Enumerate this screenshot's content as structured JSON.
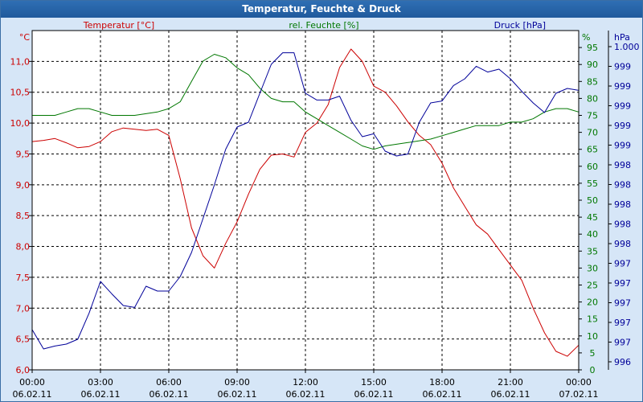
{
  "window": {
    "title": "Temperatur, Feuchte & Druck"
  },
  "colors": {
    "temperature": "#cc0000",
    "humidity": "#007700",
    "pressure": "#000099",
    "grid": "#000000",
    "plot_bg": "#ffffff",
    "frame_bg": "#d6e6f7"
  },
  "chart_data": {
    "type": "line",
    "title": "Temperatur, Feuchte & Druck",
    "x_ticks": [
      {
        "time": "00:00",
        "date": "06.02.11"
      },
      {
        "time": "03:00",
        "date": "06.02.11"
      },
      {
        "time": "06:00",
        "date": "06.02.11"
      },
      {
        "time": "09:00",
        "date": "06.02.11"
      },
      {
        "time": "12:00",
        "date": "06.02.11"
      },
      {
        "time": "15:00",
        "date": "06.02.11"
      },
      {
        "time": "18:00",
        "date": "06.02.11"
      },
      {
        "time": "21:00",
        "date": "06.02.11"
      },
      {
        "time": "00:00",
        "date": "07.02.11"
      }
    ],
    "xlim_hours": [
      0,
      24
    ],
    "axes": {
      "temperature": {
        "label": "Temperatur [°C]",
        "unit": "°C",
        "ylim": [
          6.0,
          11.5
        ],
        "ticks": [
          "6,0",
          "6,5",
          "7,0",
          "7,5",
          "8,0",
          "8,5",
          "9,0",
          "9,5",
          "10,0",
          "10,5",
          "11,0"
        ]
      },
      "humidity": {
        "label": "rel. Feuchte [%]",
        "unit": "%",
        "ylim": [
          0,
          100
        ],
        "ticks": [
          "0",
          "5",
          "10",
          "15",
          "20",
          "25",
          "30",
          "35",
          "40",
          "45",
          "50",
          "55",
          "60",
          "65",
          "70",
          "75",
          "80",
          "85",
          "90",
          "95"
        ]
      },
      "pressure": {
        "label": "Druck [hPa]",
        "unit": "hPa",
        "ticks": [
          "996",
          "997",
          "997",
          "997",
          "997",
          "997",
          "998",
          "998",
          "998",
          "998",
          "998",
          "999",
          "999",
          "999",
          "999",
          "999",
          "1.000"
        ]
      }
    },
    "series": [
      {
        "name": "Temperatur",
        "axis": "temperature",
        "x": [
          0,
          0.5,
          1,
          1.5,
          2,
          2.5,
          3,
          3.5,
          4,
          4.5,
          5,
          5.5,
          6,
          6.5,
          7,
          7.5,
          8,
          8.5,
          9,
          9.5,
          10,
          10.5,
          11,
          11.5,
          12,
          12.5,
          13,
          13.5,
          14,
          14.5,
          15,
          15.5,
          16,
          16.5,
          17,
          17.5,
          18,
          18.5,
          19,
          19.5,
          20,
          20.5,
          21,
          21.5,
          22,
          22.5,
          23,
          23.5,
          24
        ],
        "values": [
          9.7,
          9.72,
          9.75,
          9.68,
          9.6,
          9.62,
          9.7,
          9.86,
          9.92,
          9.9,
          9.88,
          9.9,
          9.8,
          9.1,
          8.3,
          7.85,
          7.65,
          8.05,
          8.4,
          8.85,
          9.25,
          9.48,
          9.5,
          9.45,
          9.85,
          10.0,
          10.3,
          10.9,
          11.2,
          11.0,
          10.6,
          10.5,
          10.28,
          10.02,
          9.8,
          9.65,
          9.35,
          8.95,
          8.65,
          8.35,
          8.2,
          7.95,
          7.7,
          7.45,
          7.0,
          6.6,
          6.3,
          6.22,
          6.4
        ]
      },
      {
        "name": "rel. Feuchte",
        "axis": "humidity",
        "x": [
          0,
          0.5,
          1,
          1.5,
          2,
          2.5,
          3,
          3.5,
          4,
          4.5,
          5,
          5.5,
          6,
          6.5,
          7,
          7.5,
          8,
          8.5,
          9,
          9.5,
          10,
          10.5,
          11,
          11.5,
          12,
          12.5,
          13,
          13.5,
          14,
          14.5,
          15,
          15.5,
          16,
          16.5,
          17,
          17.5,
          18,
          18.5,
          19,
          19.5,
          20,
          20.5,
          21,
          21.5,
          22,
          22.5,
          23,
          23.5,
          24
        ],
        "values": [
          75,
          75,
          75,
          76,
          77,
          77,
          76,
          75,
          75,
          75,
          75.5,
          76,
          77,
          79,
          85,
          91,
          93,
          92,
          89,
          87,
          83,
          80,
          79,
          79,
          76,
          74,
          72,
          70,
          68,
          66,
          65,
          66,
          66.5,
          67,
          67.5,
          68,
          69,
          70,
          71,
          72,
          72,
          72,
          73,
          73,
          74,
          76,
          77,
          77,
          76
        ]
      },
      {
        "name": "Druck",
        "axis": "pressure",
        "x": [
          0,
          0.5,
          1,
          1.5,
          2,
          2.5,
          3,
          3.5,
          4,
          4.5,
          5,
          5.5,
          6,
          6.5,
          7,
          7.5,
          8,
          8.5,
          9,
          9.5,
          10,
          10.5,
          11,
          11.5,
          12,
          12.5,
          13,
          13.5,
          14,
          14.5,
          15,
          15.5,
          16,
          16.5,
          17,
          17.5,
          18,
          18.5,
          19,
          19.5,
          20,
          20.5,
          21,
          21.5,
          22,
          22.5,
          23,
          23.5,
          24
        ],
        "values": [
          996.95,
          996.75,
          996.78,
          996.8,
          996.85,
          997.12,
          997.45,
          997.32,
          997.2,
          997.18,
          997.4,
          997.35,
          997.35,
          997.5,
          997.75,
          998.1,
          998.45,
          998.82,
          999.05,
          999.1,
          999.4,
          999.7,
          999.82,
          999.82,
          999.4,
          999.33,
          999.33,
          999.37,
          999.12,
          998.95,
          998.98,
          998.8,
          998.75,
          998.77,
          999.1,
          999.3,
          999.32,
          999.48,
          999.55,
          999.68,
          999.62,
          999.65,
          999.55,
          999.42,
          999.3,
          999.2,
          999.4,
          999.45,
          999.43
        ]
      }
    ]
  }
}
